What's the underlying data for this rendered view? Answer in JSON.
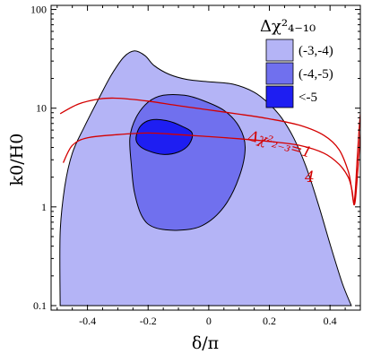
{
  "chart_data": {
    "type": "contour",
    "xlabel": "δ/π",
    "ylabel": "k0/H0",
    "xlim": [
      -0.52,
      0.5
    ],
    "ylim": [
      0.09,
      110
    ],
    "yscale": "log",
    "x_ticks": [
      -0.4,
      -0.2,
      0,
      0.2,
      0.4
    ],
    "x_tick_labels": [
      "-0.4",
      "-0.2",
      "0",
      "0.2",
      "0.4"
    ],
    "y_ticks": [
      0.1,
      1,
      10,
      100
    ],
    "y_tick_labels": [
      "0.1",
      "1",
      "10",
      "100"
    ],
    "legend": {
      "title": "Δχ²₄₋₁₀",
      "placement": "top-right",
      "entries": [
        {
          "label": "(-3,-4)",
          "color": "#b4b4f6"
        },
        {
          "label": "(-4,-5)",
          "color": "#7070ee"
        },
        {
          "label": "<-5",
          "color": "#1e1ef2"
        }
      ]
    },
    "regions": [
      {
        "name": "(-3,-4)",
        "color": "#b4b4f6",
        "boundary": [
          [
            -0.49,
            0.1
          ],
          [
            -0.49,
            0.55
          ],
          [
            -0.475,
            1.6
          ],
          [
            -0.45,
            3.5
          ],
          [
            -0.41,
            6.5
          ],
          [
            -0.36,
            13
          ],
          [
            -0.32,
            22
          ],
          [
            -0.28,
            33
          ],
          [
            -0.245,
            38
          ],
          [
            -0.21,
            34
          ],
          [
            -0.18,
            27
          ],
          [
            -0.13,
            22
          ],
          [
            -0.07,
            19.5
          ],
          [
            0,
            18.5
          ],
          [
            0.08,
            17.5
          ],
          [
            0.15,
            14.5
          ],
          [
            0.2,
            11
          ],
          [
            0.24,
            8
          ],
          [
            0.28,
            5
          ],
          [
            0.32,
            2.6
          ],
          [
            0.36,
            1.1
          ],
          [
            0.4,
            0.42
          ],
          [
            0.44,
            0.17
          ],
          [
            0.47,
            0.1
          ]
        ]
      },
      {
        "name": "(-4,-5)",
        "color": "#7070ee",
        "boundary": [
          [
            -0.26,
            5
          ],
          [
            -0.24,
            8
          ],
          [
            -0.2,
            11.5
          ],
          [
            -0.15,
            13.5
          ],
          [
            -0.08,
            13.5
          ],
          [
            -0.02,
            12
          ],
          [
            0.05,
            9.5
          ],
          [
            0.1,
            6.5
          ],
          [
            0.12,
            4
          ],
          [
            0.1,
            2
          ],
          [
            0.05,
            1
          ],
          [
            -0.02,
            0.65
          ],
          [
            -0.1,
            0.58
          ],
          [
            -0.18,
            0.62
          ],
          [
            -0.22,
            0.8
          ],
          [
            -0.245,
            1.4
          ],
          [
            -0.255,
            2.6
          ]
        ]
      },
      {
        "name": "<-5",
        "color": "#1e1ef2",
        "boundary": [
          [
            -0.24,
            5
          ],
          [
            -0.225,
            6.6
          ],
          [
            -0.19,
            7.6
          ],
          [
            -0.14,
            7.5
          ],
          [
            -0.09,
            6.6
          ],
          [
            -0.055,
            5.6
          ],
          [
            -0.065,
            4.3
          ],
          [
            -0.1,
            3.6
          ],
          [
            -0.15,
            3.4
          ],
          [
            -0.2,
            3.7
          ],
          [
            -0.23,
            4.2
          ]
        ]
      }
    ],
    "curves": [
      {
        "name": "Δχ²₂₋₃=1",
        "label_text": "Δχ²₂₋₃=1",
        "color": "#d40000",
        "points": [
          [
            -0.49,
            8.8
          ],
          [
            -0.43,
            11
          ],
          [
            -0.36,
            12.4
          ],
          [
            -0.3,
            12.6
          ],
          [
            -0.2,
            11.8
          ],
          [
            -0.1,
            10.6
          ],
          [
            0,
            9.6
          ],
          [
            0.1,
            8.7
          ],
          [
            0.2,
            7.8
          ],
          [
            0.3,
            6.7
          ],
          [
            0.38,
            5.3
          ],
          [
            0.43,
            3.8
          ],
          [
            0.46,
            2.3
          ],
          [
            0.47,
            1.6
          ],
          [
            0.475,
            1.25
          ],
          [
            0.478,
            1.1
          ],
          [
            0.481,
            1.2
          ],
          [
            0.485,
            1.7
          ],
          [
            0.49,
            3.2
          ],
          [
            0.497,
            6.8
          ],
          [
            0.502,
            10
          ]
        ]
      },
      {
        "name": "4",
        "label_text": "4",
        "color": "#d40000",
        "points": [
          [
            -0.48,
            2.8
          ],
          [
            -0.45,
            4.2
          ],
          [
            -0.4,
            5
          ],
          [
            -0.3,
            5.4
          ],
          [
            -0.2,
            5.6
          ],
          [
            -0.1,
            5.4
          ],
          [
            0,
            5.15
          ],
          [
            0.1,
            4.9
          ],
          [
            0.2,
            4.6
          ],
          [
            0.3,
            4.2
          ],
          [
            0.38,
            3.5
          ],
          [
            0.43,
            2.7
          ],
          [
            0.46,
            2
          ],
          [
            0.472,
            1.5
          ],
          [
            0.477,
            1.15
          ],
          [
            0.479,
            1.05
          ],
          [
            0.483,
            1.15
          ],
          [
            0.49,
            2
          ],
          [
            0.498,
            4.5
          ],
          [
            0.502,
            7
          ]
        ]
      }
    ]
  }
}
